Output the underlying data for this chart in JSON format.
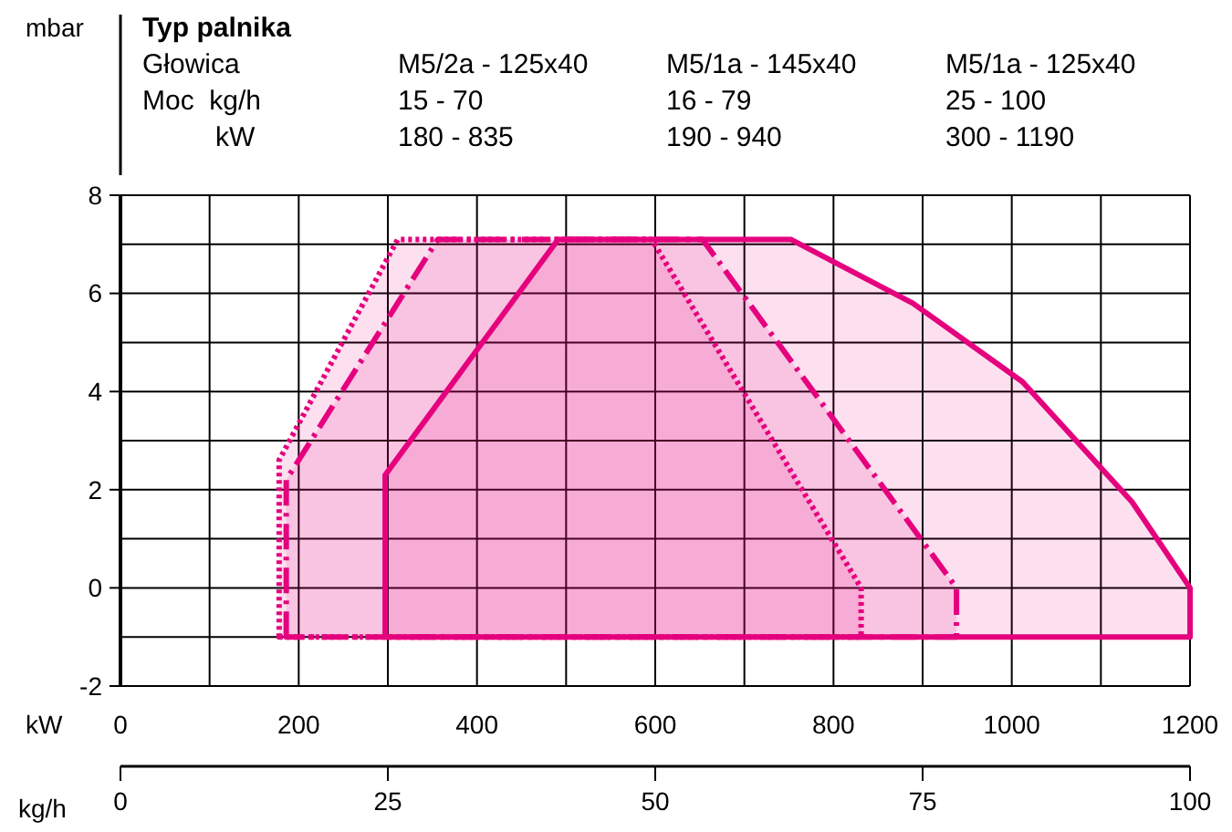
{
  "chart_data": {
    "type": "area",
    "xlabel": "kW",
    "x2label": "kg/h",
    "annotations": [
      "mbar",
      "Typ palnika",
      "Głowica",
      "M5/2a - 125x40",
      "M5/1a - 145x40",
      "M5/1a - 125x40",
      "Moc  kg/h",
      "15 - 70",
      "16 - 79",
      "25 - 100",
      "kW",
      "180 - 835",
      "190 - 940",
      "300 - 1190"
    ],
    "series": [
      {
        "color": "#e5007e",
        "line_style": "dotted",
        "x": [
          178,
          178,
          311,
          596,
          831,
          831
        ],
        "values": [
          -1,
          2.6,
          7.1,
          7.1,
          0,
          -1
        ]
      },
      {
        "color": "#e5007e",
        "line_style": "dashed",
        "x": [
          186,
          186,
          356,
          653,
          938,
          938
        ],
        "values": [
          -1,
          2.2,
          7.1,
          7.1,
          0,
          -1
        ]
      },
      {
        "color": "#e5007e",
        "line_style": "solid",
        "x": [
          297,
          297,
          491,
          752,
          889,
          1012,
          1135,
          1200,
          1200
        ],
        "values": [
          -1,
          2.3,
          7.1,
          7.1,
          5.8,
          4.2,
          1.75,
          0,
          -1
        ]
      }
    ],
    "xlim": [
      0,
      1200
    ],
    "xticks": [
      0,
      {
        "value": 100,
        "label": null
      },
      200,
      {
        "value": 300,
        "label": null
      },
      400,
      {
        "value": 500,
        "label": null
      },
      600,
      {
        "value": 700,
        "label": null
      },
      800,
      {
        "value": 900,
        "label": null
      },
      1000,
      {
        "value": 1100,
        "label": null
      },
      1200
    ],
    "ylim": [
      -2,
      8
    ],
    "yticks": [
      -2,
      {
        "value": -1,
        "label": null
      },
      0,
      {
        "value": 1,
        "label": null
      },
      2,
      {
        "value": 3,
        "label": null
      },
      4,
      {
        "value": 5,
        "label": null
      },
      6,
      {
        "value": 7,
        "label": null
      },
      8
    ],
    "x2lim": [
      0,
      100
    ],
    "x2ticks": [
      0,
      25,
      50,
      75,
      100
    ],
    "grid": true
  }
}
